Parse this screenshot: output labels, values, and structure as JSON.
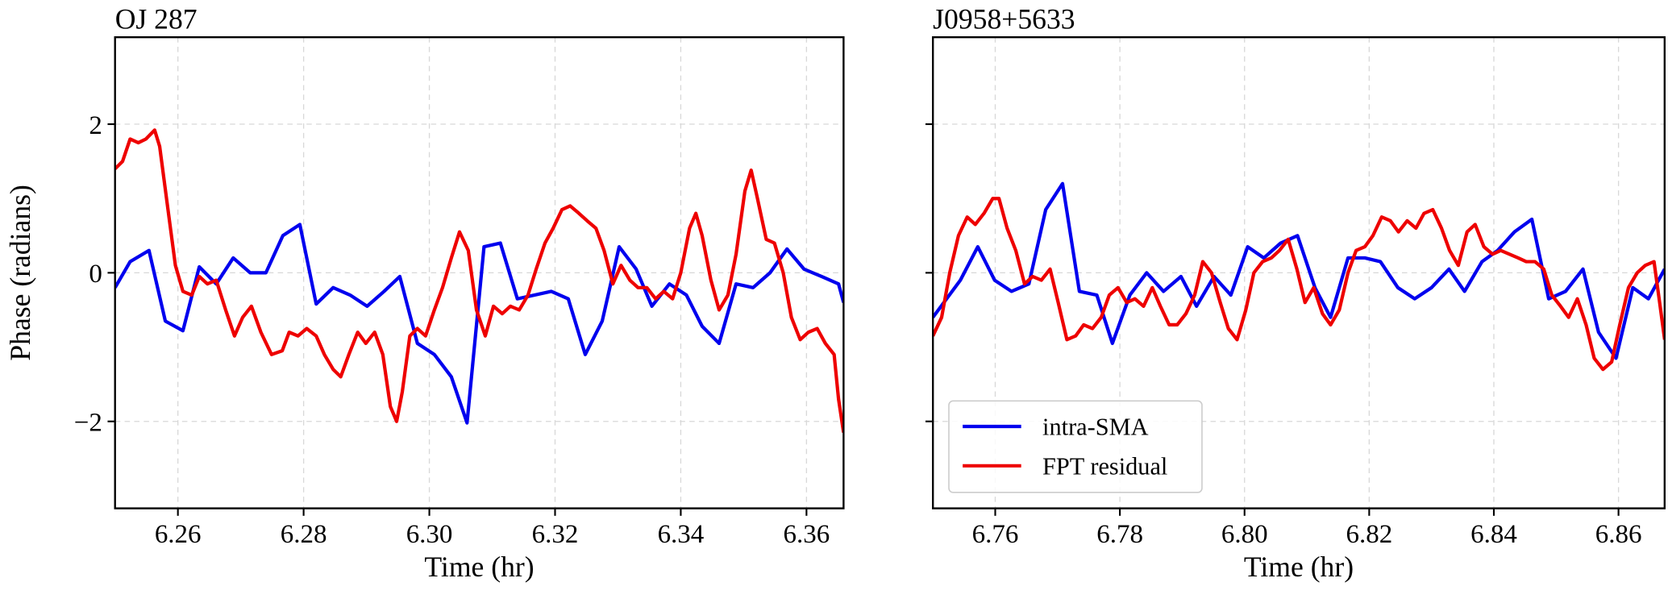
{
  "chart_data": [
    {
      "type": "line",
      "title": "OJ 287",
      "xlabel": "Time (hr)",
      "ylabel": "Phase (radians)",
      "xlim": [
        6.25,
        6.3659
      ],
      "ylim": [
        -3.17,
        3.17
      ],
      "xticks": [
        6.26,
        6.28,
        {
          "value": 6.3,
          "label": "6.30"
        },
        6.32,
        6.34,
        6.36
      ],
      "yticks": [
        {
          "value": -2,
          "label": "−2"
        },
        0,
        2
      ],
      "grid": true,
      "series": [
        {
          "color": "#0000ee",
          "x": [
            6.25,
            6.2524,
            6.2554,
            6.258,
            6.2608,
            6.2634,
            6.2661,
            6.2688,
            6.2715,
            6.274,
            6.2767,
            6.2794,
            6.282,
            6.2847,
            6.2874,
            6.2901,
            6.2928,
            6.2953,
            6.2981,
            6.3008,
            6.3035,
            6.306,
            6.3087,
            6.3113,
            6.314,
            6.3167,
            6.3194,
            6.3221,
            6.3248,
            6.3275,
            6.3302,
            6.3329,
            6.3354,
            6.3382,
            6.3409,
            6.3434,
            6.3461,
            6.3488,
            6.3515,
            6.3542,
            6.3569,
            6.3596,
            6.3624,
            6.3651,
            6.3659
          ],
          "values": [
            -0.2,
            0.15,
            0.3,
            -0.65,
            -0.78,
            0.08,
            -0.15,
            0.2,
            0,
            0,
            0.5,
            0.65,
            -0.42,
            -0.2,
            -0.3,
            -0.45,
            -0.25,
            -0.05,
            -0.95,
            -1.1,
            -1.4,
            -2.02,
            0.35,
            0.4,
            -0.35,
            -0.3,
            -0.25,
            -0.35,
            -1.1,
            -0.65,
            0.35,
            0.05,
            -0.45,
            -0.15,
            -0.3,
            -0.72,
            -0.95,
            -0.15,
            -0.2,
            0,
            0.32,
            0.05,
            -0.05,
            -0.15,
            -0.4
          ]
        },
        {
          "color": "#ee0000",
          "x": [
            6.25,
            6.2512,
            6.2524,
            6.2537,
            6.2549,
            6.2563,
            6.2571,
            6.2585,
            6.2596,
            6.2608,
            6.2622,
            6.2634,
            6.2647,
            6.2661,
            6.2676,
            6.269,
            6.2703,
            6.2717,
            6.2732,
            6.2749,
            6.2766,
            6.2777,
            6.2791,
            6.2805,
            6.282,
            6.2833,
            6.2847,
            6.2859,
            6.2872,
            6.2886,
            6.2899,
            6.2913,
            6.2926,
            6.2938,
            6.2948,
            6.2957,
            6.2969,
            6.2981,
            6.2994,
            6.3008,
            6.3021,
            6.3035,
            6.3048,
            6.3062,
            6.3075,
            6.3089,
            6.3102,
            6.3116,
            6.3129,
            6.3143,
            6.3157,
            6.317,
            6.3184,
            6.3197,
            6.3211,
            6.3224,
            6.3238,
            6.3251,
            6.3265,
            6.3278,
            6.3292,
            6.3305,
            6.3319,
            6.3332,
            6.3346,
            6.336,
            6.3373,
            6.3387,
            6.34,
            6.3414,
            6.3424,
            6.3434,
            6.3448,
            6.3461,
            6.3475,
            6.3488,
            6.3502,
            6.3512,
            6.3522,
            6.3536,
            6.3549,
            6.3563,
            6.3576,
            6.359,
            6.3603,
            6.3617,
            6.363,
            6.3644,
            6.3651,
            6.3659
          ],
          "values": [
            1.4,
            1.5,
            1.8,
            1.75,
            1.8,
            1.92,
            1.7,
            0.8,
            0.1,
            -0.25,
            -0.3,
            -0.05,
            -0.15,
            -0.1,
            -0.5,
            -0.85,
            -0.6,
            -0.45,
            -0.8,
            -1.1,
            -1.05,
            -0.8,
            -0.85,
            -0.75,
            -0.85,
            -1.1,
            -1.3,
            -1.4,
            -1.1,
            -0.8,
            -0.95,
            -0.8,
            -1.1,
            -1.8,
            -2.0,
            -1.6,
            -0.85,
            -0.75,
            -0.85,
            -0.5,
            -0.2,
            0.2,
            0.55,
            0.3,
            -0.5,
            -0.85,
            -0.45,
            -0.55,
            -0.45,
            -0.5,
            -0.3,
            0.05,
            0.4,
            0.6,
            0.85,
            0.9,
            0.8,
            0.7,
            0.6,
            0.3,
            -0.15,
            0.1,
            -0.1,
            -0.2,
            -0.2,
            -0.35,
            -0.25,
            -0.35,
            0.0,
            0.6,
            0.8,
            0.5,
            -0.1,
            -0.5,
            -0.3,
            0.25,
            1.1,
            1.38,
            1.0,
            0.45,
            0.4,
            0.0,
            -0.6,
            -0.9,
            -0.8,
            -0.75,
            -0.95,
            -1.1,
            -1.7,
            -2.15
          ]
        }
      ]
    },
    {
      "type": "line",
      "title": "J0958+5633",
      "xlabel": "Time (hr)",
      "xlim": [
        6.75,
        6.8674
      ],
      "ylim": [
        -3.17,
        3.17
      ],
      "xticks": [
        6.76,
        6.78,
        {
          "value": 6.8,
          "label": "6.80"
        },
        6.82,
        6.84,
        6.86
      ],
      "yticks": [
        -2,
        0,
        2
      ],
      "show_ytick_labels": false,
      "grid": true,
      "legend": "lower left",
      "series": [
        {
          "name": "intra-SMA",
          "color": "#0000ee",
          "x": [
            6.75,
            6.7522,
            6.7544,
            6.7572,
            6.7599,
            6.7626,
            6.7654,
            6.7681,
            6.7708,
            6.7735,
            6.7763,
            6.7788,
            6.7816,
            6.7843,
            6.787,
            6.7898,
            6.7923,
            6.7951,
            6.7978,
            6.8005,
            6.8031,
            6.8058,
            6.8085,
            6.8113,
            6.8138,
            6.8166,
            6.8193,
            6.8218,
            6.8246,
            6.8273,
            6.83,
            6.8328,
            6.8353,
            6.8381,
            6.8406,
            6.8433,
            6.8461,
            6.8488,
            6.8515,
            6.8543,
            6.8568,
            6.8596,
            6.8623,
            6.8648,
            6.8674
          ],
          "values": [
            -0.6,
            -0.35,
            -0.1,
            0.35,
            -0.1,
            -0.25,
            -0.15,
            0.85,
            1.2,
            -0.25,
            -0.3,
            -0.95,
            -0.3,
            0.0,
            -0.25,
            -0.05,
            -0.45,
            -0.05,
            -0.3,
            0.35,
            0.2,
            0.4,
            0.5,
            -0.2,
            -0.6,
            0.2,
            0.2,
            0.15,
            -0.2,
            -0.35,
            -0.2,
            0.05,
            -0.25,
            0.15,
            0.3,
            0.55,
            0.72,
            -0.35,
            -0.25,
            0.05,
            -0.8,
            -1.15,
            -0.2,
            -0.35,
            0.05
          ]
        },
        {
          "name": "FPT residual",
          "color": "#ee0000",
          "x": [
            6.75,
            6.7514,
            6.7527,
            6.7541,
            6.7555,
            6.7568,
            6.7582,
            6.7596,
            6.7606,
            6.7619,
            6.7633,
            6.7647,
            6.766,
            6.7674,
            6.7688,
            6.7701,
            6.7715,
            6.7729,
            6.7742,
            6.7756,
            6.777,
            6.7783,
            6.7797,
            6.7811,
            6.7824,
            6.7838,
            6.7852,
            6.7865,
            6.7879,
            6.7892,
            6.7906,
            6.792,
            6.7933,
            6.7947,
            6.7961,
            6.7974,
            6.7988,
            6.8002,
            6.8015,
            6.8029,
            6.8043,
            6.8056,
            6.807,
            6.8084,
            6.8097,
            6.8111,
            6.8125,
            6.8138,
            6.8152,
            6.8166,
            6.8179,
            6.8193,
            6.8206,
            6.822,
            6.8234,
            6.8247,
            6.8261,
            6.8275,
            6.8288,
            6.8302,
            6.8316,
            6.8329,
            6.8343,
            6.8357,
            6.837,
            6.8384,
            6.8398,
            6.8411,
            6.8425,
            6.8439,
            6.8452,
            6.8466,
            6.848,
            6.8493,
            6.8507,
            6.852,
            6.8534,
            6.8548,
            6.8561,
            6.8575,
            6.8589,
            6.8602,
            6.8616,
            6.863,
            6.8643,
            6.8657,
            6.8666,
            6.8674
          ],
          "values": [
            -0.85,
            -0.6,
            0.0,
            0.5,
            0.75,
            0.65,
            0.8,
            1.0,
            1.0,
            0.6,
            0.3,
            -0.15,
            -0.05,
            -0.1,
            0.05,
            -0.4,
            -0.9,
            -0.85,
            -0.7,
            -0.75,
            -0.6,
            -0.3,
            -0.2,
            -0.4,
            -0.35,
            -0.45,
            -0.2,
            -0.45,
            -0.7,
            -0.7,
            -0.55,
            -0.3,
            0.15,
            0.0,
            -0.4,
            -0.75,
            -0.9,
            -0.5,
            0.0,
            0.15,
            0.2,
            0.3,
            0.45,
            0.05,
            -0.4,
            -0.2,
            -0.55,
            -0.7,
            -0.5,
            0.0,
            0.3,
            0.35,
            0.5,
            0.75,
            0.7,
            0.55,
            0.7,
            0.6,
            0.8,
            0.85,
            0.6,
            0.3,
            0.1,
            0.55,
            0.65,
            0.35,
            0.25,
            0.3,
            0.25,
            0.2,
            0.15,
            0.15,
            0.05,
            -0.3,
            -0.45,
            -0.6,
            -0.35,
            -0.7,
            -1.15,
            -1.3,
            -1.2,
            -0.7,
            -0.2,
            0.0,
            0.1,
            0.15,
            -0.4,
            -0.9
          ]
        }
      ]
    }
  ]
}
